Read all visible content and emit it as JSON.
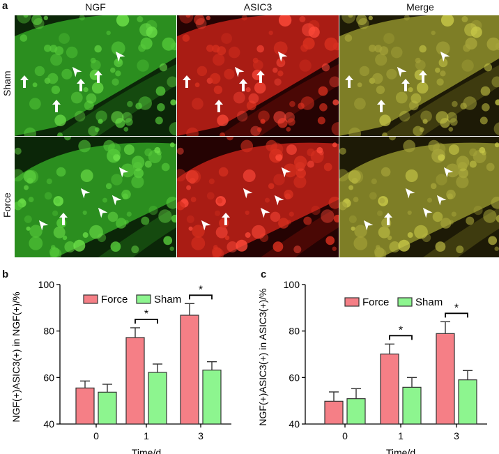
{
  "figure": {
    "panel_a": {
      "label": "a",
      "columns": [
        "NGF",
        "ASIC3",
        "Merge"
      ],
      "rows": [
        "Sham",
        "Force"
      ]
    },
    "panel_b": {
      "label": "b"
    },
    "panel_c": {
      "label": "c"
    }
  },
  "colors": {
    "force": "#F57F86",
    "sham": "#8DF58F",
    "bar_stroke": "#333333",
    "ngf_green": "#2F9A22",
    "asic3_red": "#B81F16",
    "merge_olive": "#8A8A2A"
  },
  "chart_data": [
    {
      "panel": "b",
      "type": "bar",
      "categories": [
        "0",
        "1",
        "3"
      ],
      "series": [
        {
          "name": "Force",
          "values": [
            55.5,
            77.2,
            86.8
          ],
          "errors": [
            3.0,
            4.2,
            5.0
          ]
        },
        {
          "name": "Sham",
          "values": [
            53.7,
            62.2,
            63.2
          ],
          "errors": [
            3.4,
            3.6,
            3.6
          ]
        }
      ],
      "xlabel": "Time/d",
      "ylabel": "NGF(+)ASIC3(+) in NGF(+)/%",
      "ylim": [
        40,
        100
      ],
      "yticks": [
        40,
        60,
        80,
        100
      ],
      "significance": [
        {
          "category": "1",
          "label": "*"
        },
        {
          "category": "3",
          "label": "*"
        }
      ],
      "legend": [
        "Force",
        "Sham"
      ]
    },
    {
      "panel": "c",
      "type": "bar",
      "categories": [
        "0",
        "1",
        "3"
      ],
      "series": [
        {
          "name": "Force",
          "values": [
            49.8,
            70.1,
            78.9
          ],
          "errors": [
            4.0,
            4.3,
            5.1
          ]
        },
        {
          "name": "Sham",
          "values": [
            50.9,
            55.8,
            59.0
          ],
          "errors": [
            4.3,
            4.2,
            4.0
          ]
        }
      ],
      "xlabel": "Time/d",
      "ylabel": "NGF(+)ASIC3(+) in ASIC3(+)/%",
      "ylim": [
        40,
        100
      ],
      "yticks": [
        40,
        60,
        80,
        100
      ],
      "significance": [
        {
          "category": "1",
          "label": "*"
        },
        {
          "category": "3",
          "label": "*"
        }
      ],
      "legend": [
        "Force",
        "Sham"
      ]
    }
  ]
}
